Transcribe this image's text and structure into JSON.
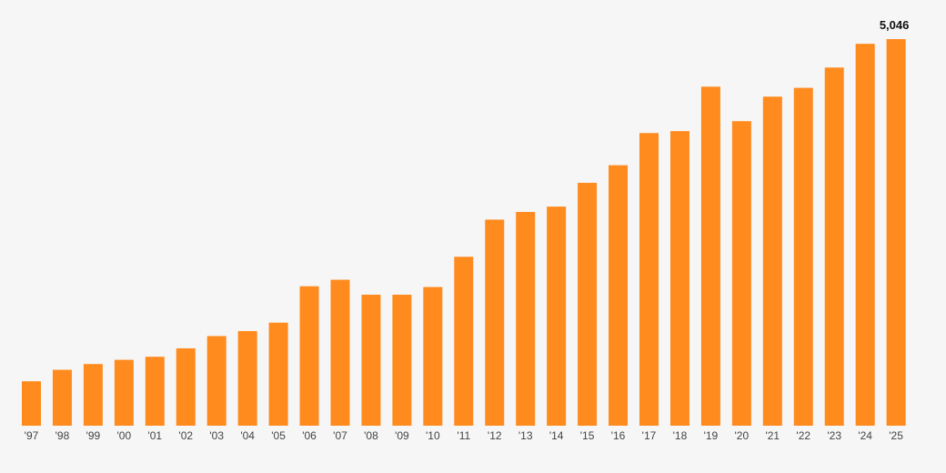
{
  "chart_data": {
    "type": "bar",
    "categories": [
      "'97",
      "'98",
      "'99",
      "'00",
      "'01",
      "'02",
      "'03",
      "'04",
      "'05",
      "'06",
      "'07",
      "'08",
      "'09",
      "'10",
      "'11",
      "'12",
      "'13",
      "'14",
      "'15",
      "'16",
      "'17",
      "'18",
      "'19",
      "'20",
      "'21",
      "'22",
      "'23",
      "'24",
      "'25"
    ],
    "values": [
      580,
      730,
      805,
      860,
      900,
      1010,
      1170,
      1235,
      1345,
      1820,
      1905,
      1710,
      1710,
      1810,
      2205,
      2690,
      2790,
      2860,
      3170,
      3400,
      3820,
      3845,
      4425,
      3975,
      4295,
      4410,
      4675,
      4985,
      5046
    ],
    "data_labels": [
      {
        "index": 28,
        "text": "5,046"
      }
    ],
    "ylim": [
      0,
      5046
    ],
    "colors": {
      "bar": "#ff8b1f",
      "background": "#f6f6f6"
    },
    "grid": false,
    "legend": "none",
    "title": "",
    "xlabel": "",
    "ylabel": ""
  }
}
